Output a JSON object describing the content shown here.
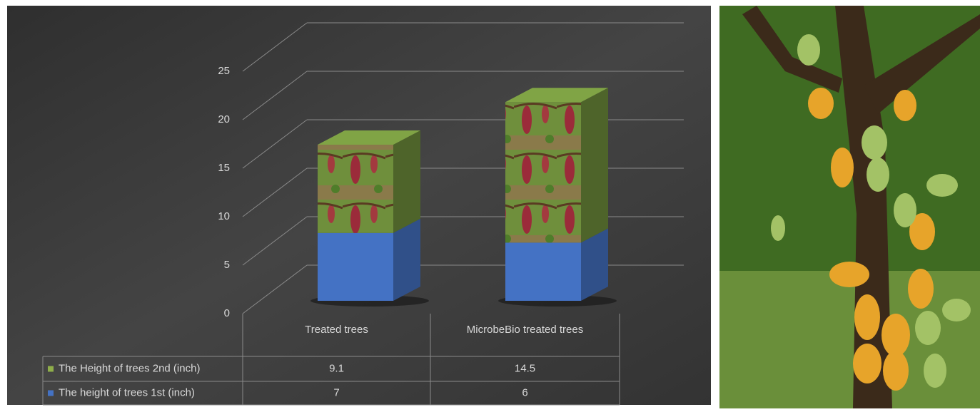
{
  "chart_data": {
    "type": "bar3d-stacked",
    "categories": [
      "Treated trees",
      "MicrobeBio treated trees"
    ],
    "series": [
      {
        "name": "The height of trees 1st (inch)",
        "color": "#4472c4",
        "values": [
          7,
          6
        ]
      },
      {
        "name": "The Height of trees 2nd (inch)",
        "color": "#6f8f3c",
        "values": [
          9.1,
          14.5
        ]
      }
    ],
    "ylim": [
      0,
      25
    ],
    "yticks": [
      0,
      5,
      10,
      15,
      20,
      25
    ],
    "grid": true,
    "data_table": true
  }
}
